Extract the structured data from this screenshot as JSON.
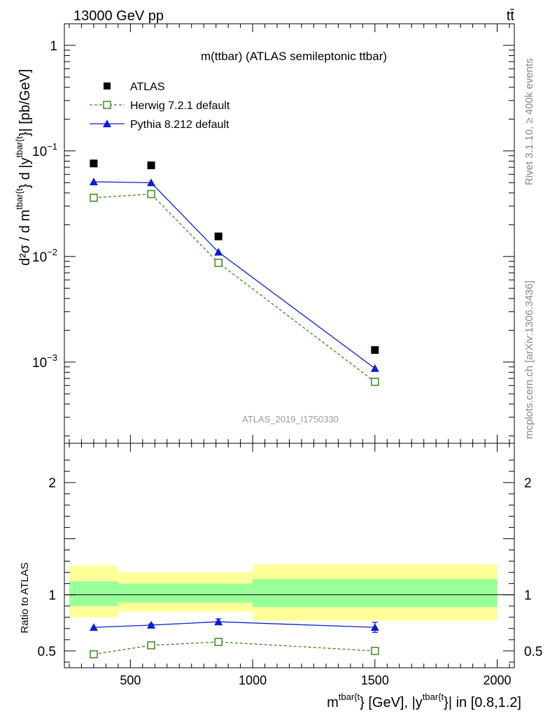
{
  "header": {
    "left": "13000 GeV pp",
    "right": "tt̄"
  },
  "side": {
    "rivet": "Rivet 3.1.10, ≥ 400k events",
    "mcplots": "mcplots.cern.ch [arXiv:1306.3436]"
  },
  "plot_title": "m(ttbar) (ATLAS semileptonic ttbar)",
  "analysis_id": "ATLAS_2019_I1750330",
  "colors": {
    "data": "#000000",
    "herwig": "#3a8a1a",
    "pythia": "#0a1ed2",
    "band_outer": "#ffff99",
    "band_inner": "#99ff99"
  },
  "chart_data": [
    {
      "type": "line",
      "panel": "main",
      "title": "m(ttbar) (ATLAS semileptonic ttbar)",
      "ylabel": {
        "main": "d²σ / d m",
        "sup1": "tbar{t",
        "mid": "} d |y",
        "sup2": "tbar{t",
        "end": "}| [pb/GeV]"
      },
      "yscale": "log",
      "ylim": [
        0.00017,
        1.6
      ],
      "xlim": [
        230,
        2070
      ],
      "yticks": [
        {
          "value": 1,
          "base": "1",
          "exp": ""
        },
        {
          "value": 0.1,
          "base": "10",
          "exp": "−1"
        },
        {
          "value": 0.01,
          "base": "10",
          "exp": "−2"
        },
        {
          "value": 0.001,
          "base": "10",
          "exp": "−3"
        }
      ],
      "legend_position": "top-left",
      "legend": [
        "ATLAS",
        "Herwig 7.2.1 default",
        "Pythia 8.212 default"
      ],
      "series": [
        {
          "name": "ATLAS",
          "style": "square-marker",
          "x": [
            350,
            585,
            860,
            1500
          ],
          "values": [
            0.076,
            0.073,
            0.0155,
            0.0013
          ]
        },
        {
          "name": "Herwig 7.2.1 default",
          "style": "dashed-open-square",
          "x": [
            350,
            585,
            860,
            1500
          ],
          "values": [
            0.036,
            0.039,
            0.0087,
            0.00065
          ]
        },
        {
          "name": "Pythia 8.212 default",
          "style": "solid-triangle",
          "x": [
            350,
            585,
            860,
            1500
          ],
          "values": [
            0.051,
            0.05,
            0.011,
            0.00087
          ]
        }
      ]
    },
    {
      "type": "line",
      "panel": "ratio",
      "ylabel": "Ratio to ATLAS",
      "ylim": [
        0.35,
        2.35
      ],
      "xlim": [
        230,
        2070
      ],
      "yticks": [
        0.5,
        1,
        2
      ],
      "xticks": [
        500,
        1000,
        1500,
        2000
      ],
      "xlabel": {
        "main": "m",
        "sup1": "tbar{t",
        "mid": "} [GeV], |y",
        "sup2": "tbar{t",
        "end": "}| in [0.8,1.2]"
      },
      "uncertainty_bands": [
        {
          "xmin": 250,
          "xmax": 450,
          "inner": [
            0.9,
            1.12
          ],
          "outer": [
            0.8,
            1.26
          ]
        },
        {
          "xmin": 450,
          "xmax": 1000,
          "inner": [
            0.93,
            1.1
          ],
          "outer": [
            0.85,
            1.2
          ]
        },
        {
          "xmin": 1000,
          "xmax": 2000,
          "inner": [
            0.89,
            1.14
          ],
          "outer": [
            0.77,
            1.27
          ]
        }
      ],
      "series": [
        {
          "name": "Herwig 7.2.1 default",
          "style": "dashed-open-square",
          "x": [
            350,
            585,
            860,
            1500
          ],
          "values": [
            0.47,
            0.55,
            0.58,
            0.5
          ]
        },
        {
          "name": "Pythia 8.212 default",
          "style": "solid-triangle",
          "x": [
            350,
            585,
            860,
            1500
          ],
          "values": [
            0.71,
            0.73,
            0.76,
            0.71
          ],
          "errors": [
            0.0,
            0.01,
            0.025,
            0.045
          ]
        }
      ]
    }
  ]
}
